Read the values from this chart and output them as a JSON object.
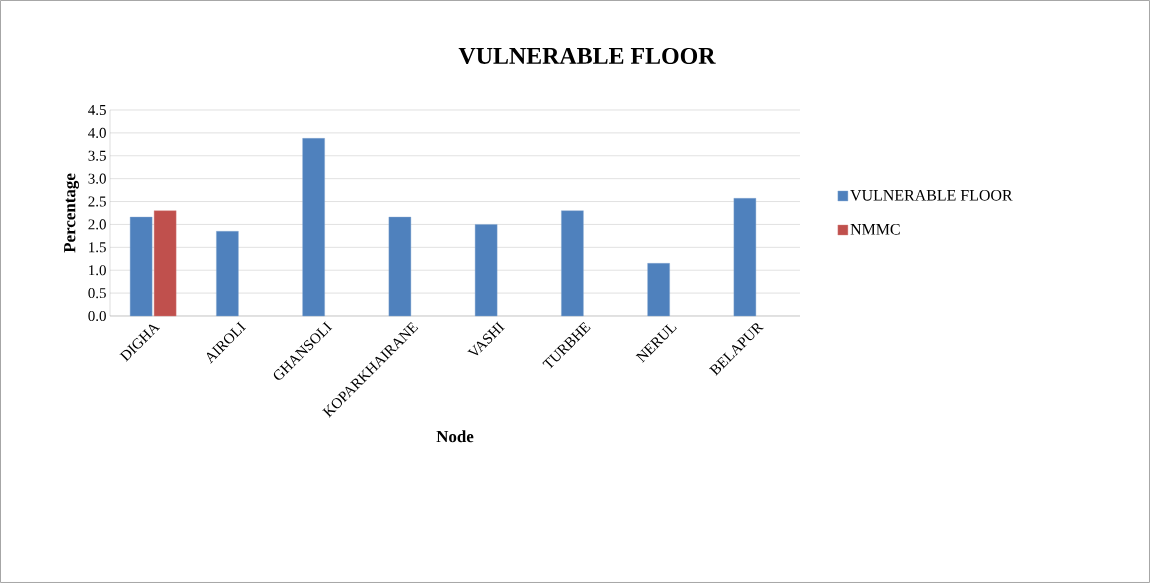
{
  "chart_data": {
    "type": "bar",
    "title": "VULNERABLE FLOOR",
    "xlabel": "Node",
    "ylabel": "Percentage",
    "categories": [
      "DIGHA",
      "AIROLI",
      "GHANSOLI",
      "KOPARKHAIRANE",
      "VASHI",
      "TURBHE",
      "NERUL",
      "BELAPUR"
    ],
    "series": [
      {
        "name": "VULNERABLE FLOOR",
        "color": "#4f81bd",
        "values": [
          2.16,
          1.85,
          3.88,
          2.16,
          2.0,
          2.3,
          1.15,
          2.57
        ]
      },
      {
        "name": "NMMC",
        "color": "#c0504d",
        "values": [
          2.3,
          null,
          null,
          null,
          null,
          null,
          null,
          null
        ]
      }
    ],
    "ylim": [
      0,
      4.5
    ],
    "yticks": [
      {
        "value": 0,
        "label": "0.0"
      },
      {
        "value": 0.5,
        "label": "0.5"
      },
      {
        "value": 1,
        "label": "1.0"
      },
      {
        "value": 1.5,
        "label": "1.5"
      },
      {
        "value": 2,
        "label": "2.0"
      },
      {
        "value": 2.5,
        "label": "2.5"
      },
      {
        "value": 3,
        "label": "3.0"
      },
      {
        "value": 3.5,
        "label": "3.5"
      },
      {
        "value": 4,
        "label": "4.0"
      },
      {
        "value": 4.5,
        "label": "4.5"
      }
    ],
    "grid": "y",
    "legend": "right"
  }
}
